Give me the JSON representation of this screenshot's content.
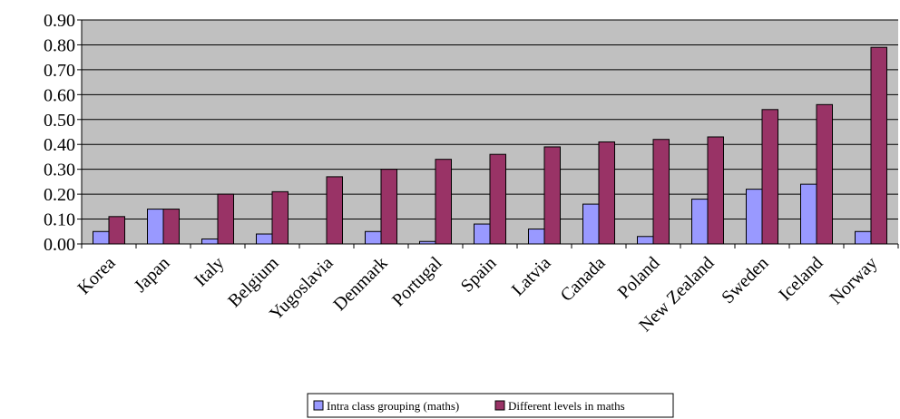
{
  "chart_data": {
    "type": "bar",
    "categories": [
      "Korea",
      "Japan",
      "Italy",
      "Belgium",
      "Yugoslavia",
      "Denmark",
      "Portugal",
      "Spain",
      "Latvia",
      "Canada",
      "Poland",
      "New Zealand",
      "Sweden",
      "Iceland",
      "Norway"
    ],
    "series": [
      {
        "name": "Intra class grouping (maths)",
        "color": "#9999ff",
        "values": [
          0.05,
          0.14,
          0.02,
          0.04,
          0.0,
          0.05,
          0.01,
          0.08,
          0.06,
          0.16,
          0.03,
          0.18,
          0.22,
          0.24,
          0.05
        ]
      },
      {
        "name": "Different levels in maths",
        "color": "#993366",
        "values": [
          0.11,
          0.14,
          0.2,
          0.21,
          0.27,
          0.3,
          0.34,
          0.36,
          0.39,
          0.41,
          0.42,
          0.43,
          0.54,
          0.56,
          0.79
        ]
      }
    ],
    "yticks": [
      "0.00",
      "0.10",
      "0.20",
      "0.30",
      "0.40",
      "0.50",
      "0.60",
      "0.70",
      "0.80",
      "0.90"
    ],
    "ylim": [
      0,
      0.9
    ],
    "plot_background": "#c0c0c0",
    "grid": true,
    "legend_position": "bottom"
  }
}
